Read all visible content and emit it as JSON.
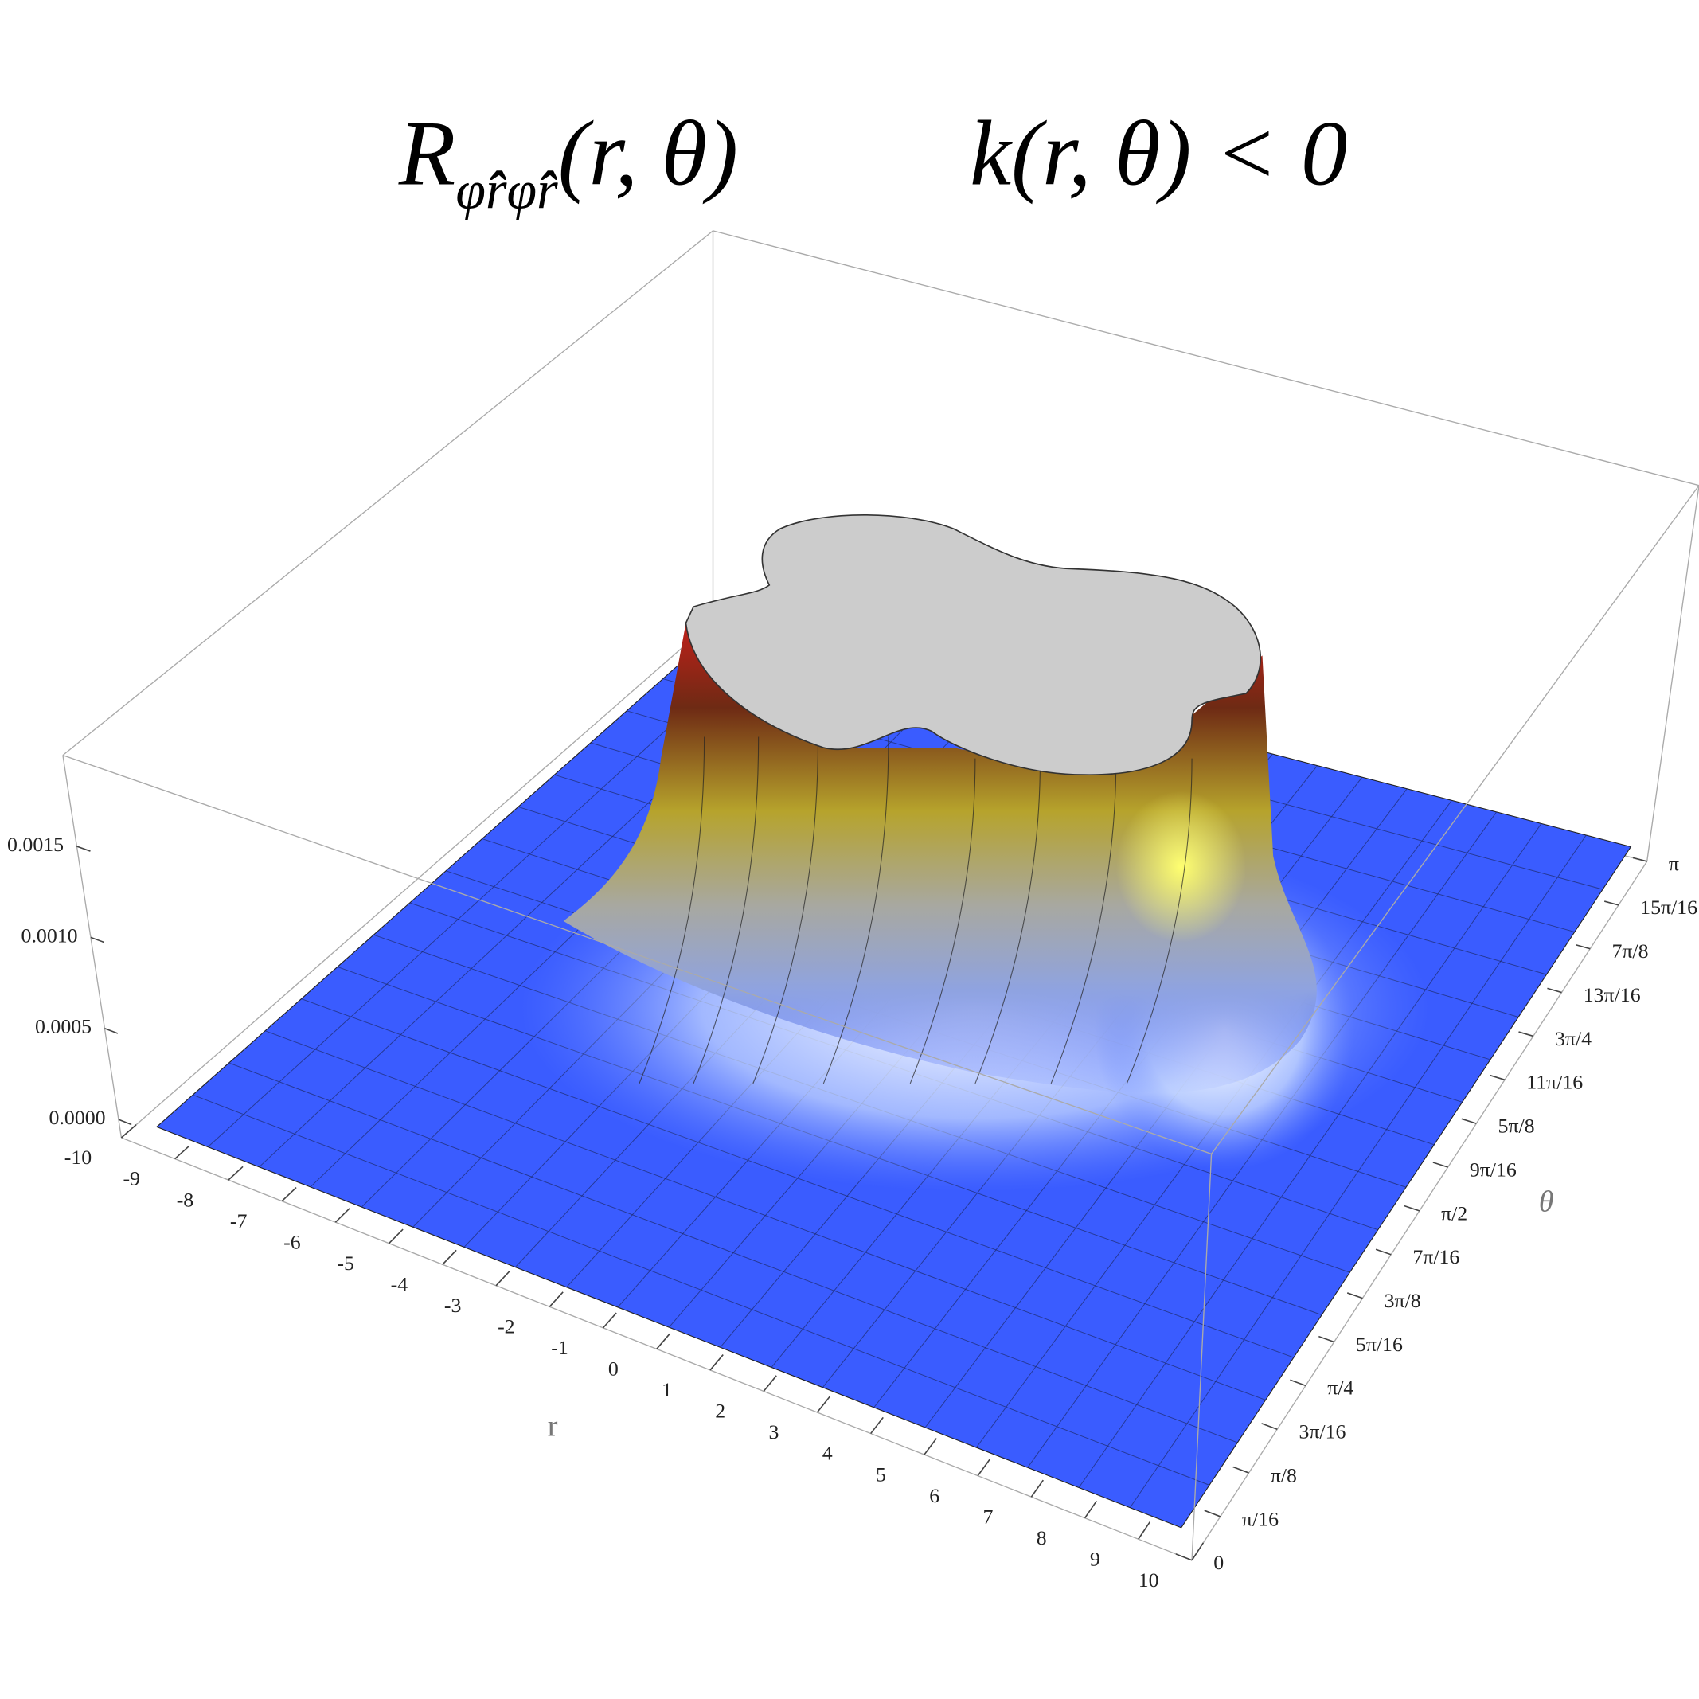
{
  "chart_data": {
    "type": "surface",
    "title": "R",
    "title_subscript": "φ̂r̂φ̂r̂",
    "title_args": "(r, θ)",
    "subtitle": "k(r, θ) < 0",
    "xlabel": "r",
    "ylabel": "θ",
    "color": "#3a5cff",
    "xlim": [
      -10,
      10
    ],
    "xticks": [
      -10,
      -9,
      -8,
      -7,
      -6,
      -5,
      -4,
      -3,
      -2,
      -1,
      0,
      1,
      2,
      3,
      4,
      5,
      6,
      7,
      8,
      9,
      10
    ],
    "ylim": [
      0,
      3.14159
    ],
    "yticks": [
      0,
      {
        "value": 0.19635,
        "label": "π/16"
      },
      {
        "value": 0.3927,
        "label": "π/8"
      },
      {
        "value": 0.58905,
        "label": "3π/16"
      },
      {
        "value": 0.7854,
        "label": "π/4"
      },
      {
        "value": 0.98175,
        "label": "5π/16"
      },
      {
        "value": 1.1781,
        "label": "3π/8"
      },
      {
        "value": 1.37445,
        "label": "7π/16"
      },
      {
        "value": 1.5708,
        "label": "π/2"
      },
      {
        "value": 1.76715,
        "label": "9π/16"
      },
      {
        "value": 1.9635,
        "label": "5π/8"
      },
      {
        "value": 2.15985,
        "label": "11π/16"
      },
      {
        "value": 2.3562,
        "label": "3π/4"
      },
      {
        "value": 2.55254,
        "label": "13π/16"
      },
      {
        "value": 2.74889,
        "label": "7π/8"
      },
      {
        "value": 2.94524,
        "label": "15π/16"
      },
      {
        "value": 3.14159,
        "label": "π"
      }
    ],
    "zlim": [
      -0.0001,
      0.002
    ],
    "zticks": [
      {
        "value": 0,
        "label": "0.0000"
      },
      {
        "value": 0.0005,
        "label": "0.0005"
      },
      {
        "value": 0.001,
        "label": "0.0010"
      },
      {
        "value": 0.0015,
        "label": "0.0015"
      }
    ]
  }
}
